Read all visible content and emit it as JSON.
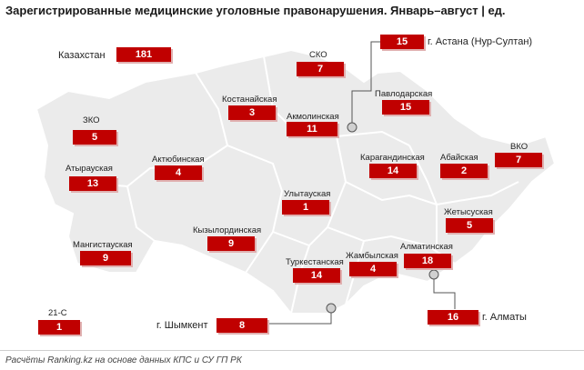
{
  "title": "Зарегистрированные медицинские уголовные правонарушения. Январь–август | ед.",
  "footer": "Расчёты Ranking.kz на основе данных КПС и СУ ГП РК",
  "colors": {
    "value_box": "#c00000",
    "map_fill": "#ebebeb",
    "borders": "#ffffff"
  },
  "total": {
    "label": "Казахстан",
    "value": "181"
  },
  "regions": {
    "zko": {
      "label": "ЗКО",
      "value": "5"
    },
    "atyrau": {
      "label": "Атырауская",
      "value": "13"
    },
    "mangistau": {
      "label": "Мангистауская",
      "value": "9"
    },
    "aktobe": {
      "label": "Актюбинская",
      "value": "4"
    },
    "kostanay": {
      "label": "Костанайская",
      "value": "3"
    },
    "sko": {
      "label": "СКО",
      "value": "7"
    },
    "akmola": {
      "label": "Акмолинская",
      "value": "11"
    },
    "pavlodar": {
      "label": "Павлодарская",
      "value": "15"
    },
    "astana": {
      "label": "г. Астана (Нур-Султан)",
      "value": "15"
    },
    "karaganda": {
      "label": "Карагандинская",
      "value": "14"
    },
    "abai": {
      "label": "Абайская",
      "value": "2"
    },
    "vko": {
      "label": "ВКО",
      "value": "7"
    },
    "ulytau": {
      "label": "Улытауская",
      "value": "1"
    },
    "zhetysu": {
      "label": "Жетысуская",
      "value": "5"
    },
    "kyzylorda": {
      "label": "Кызылординская",
      "value": "9"
    },
    "turkestan": {
      "label": "Туркестанская",
      "value": "14"
    },
    "zhambyl": {
      "label": "Жамбылская",
      "value": "4"
    },
    "almaty_reg": {
      "label": "Алматинская",
      "value": "18"
    },
    "shymkent": {
      "label": "г. Шымкент",
      "value": "8"
    },
    "almaty_city": {
      "label": "г. Алматы",
      "value": "16"
    },
    "c21": {
      "label": "21-С",
      "value": "1"
    }
  }
}
